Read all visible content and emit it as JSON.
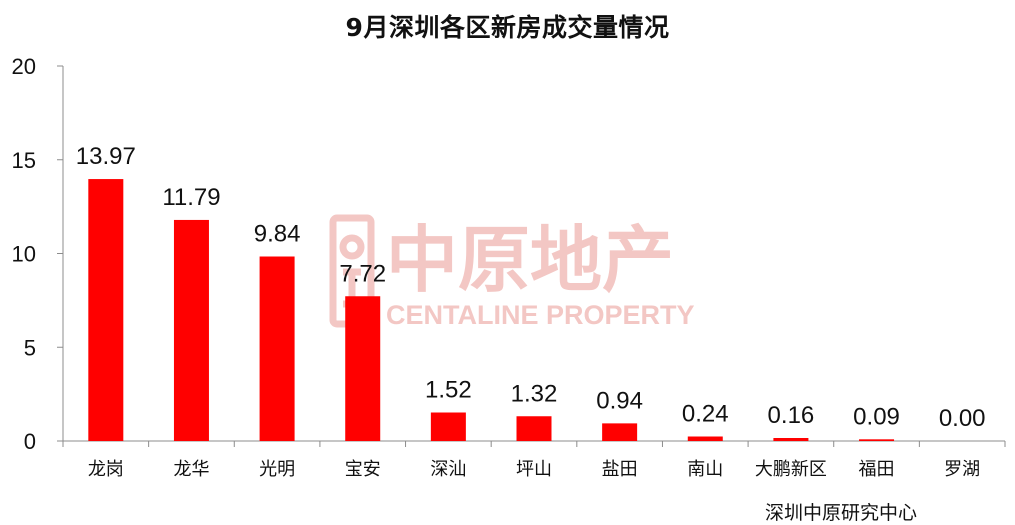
{
  "chart_data": {
    "type": "bar",
    "title": "9月深圳各区新房成交量情况",
    "categories": [
      "龙岗",
      "龙华",
      "光明",
      "宝安",
      "深汕",
      "坪山",
      "盐田",
      "南山",
      "大鹏新区",
      "福田",
      "罗湖"
    ],
    "values": [
      13.97,
      11.79,
      9.84,
      7.72,
      1.52,
      1.32,
      0.94,
      0.24,
      0.16,
      0.09,
      0.0
    ],
    "data_labels": [
      "13.97",
      "11.79",
      "9.84",
      "7.72",
      "1.52",
      "1.32",
      "0.94",
      "0.24",
      "0.16",
      "0.09",
      "0.00"
    ],
    "ylim": [
      0,
      20
    ],
    "yticks": [
      "0",
      "5",
      "10",
      "15",
      "20"
    ],
    "xlabel": "",
    "ylabel": "",
    "grid": false,
    "legend": "none",
    "bar_color": "#ff0000",
    "source": "深圳中原研究中心"
  },
  "watermark": {
    "cn": "中原地产",
    "en": "CENTALINE PROPERTY",
    "color": "#f3c7c4"
  }
}
